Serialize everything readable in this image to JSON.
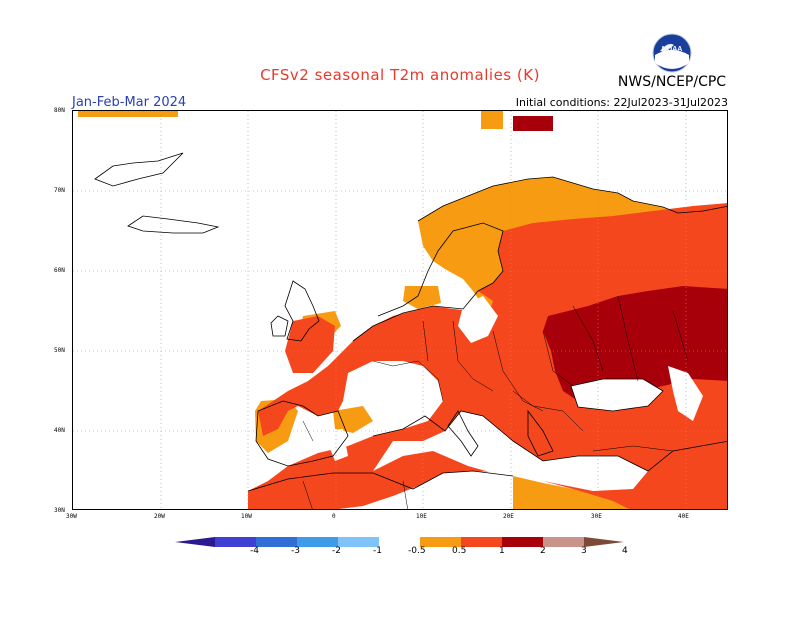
{
  "title": "CFSv2 seasonal T2m anomalies (K)",
  "agency": "NWS/NCEP/CPC",
  "logo_text": "NOAA",
  "period": "Jan-Feb-Mar 2024",
  "initial_conditions": "Initial conditions: 22Jul2023-31Jul2023",
  "lat_labels": [
    "80N",
    "70N",
    "60N",
    "50N",
    "40N",
    "30N"
  ],
  "lon_labels": [
    "30W",
    "20W",
    "10W",
    "0",
    "10E",
    "20E",
    "30E",
    "40E"
  ],
  "legend": {
    "labels": [
      "-4",
      "-3",
      "-2",
      "-1",
      "-0.5",
      "0.5",
      "1",
      "2",
      "3",
      "4"
    ],
    "colors": [
      "#2a1a8f",
      "#3f3fd4",
      "#2f6fd6",
      "#3d9be8",
      "#7fc3f7",
      "#ffffff",
      "#f79c12",
      "#f5471e",
      "#a8000b",
      "#c9928a",
      "#7d4a3a"
    ]
  },
  "colors": {
    "c05": "#f79c12",
    "c1": "#f5471e",
    "c2": "#a8000b",
    "land_line": "#000000",
    "grid": "#999999",
    "title": "#e8392b",
    "period": "#2a3fb5"
  }
}
